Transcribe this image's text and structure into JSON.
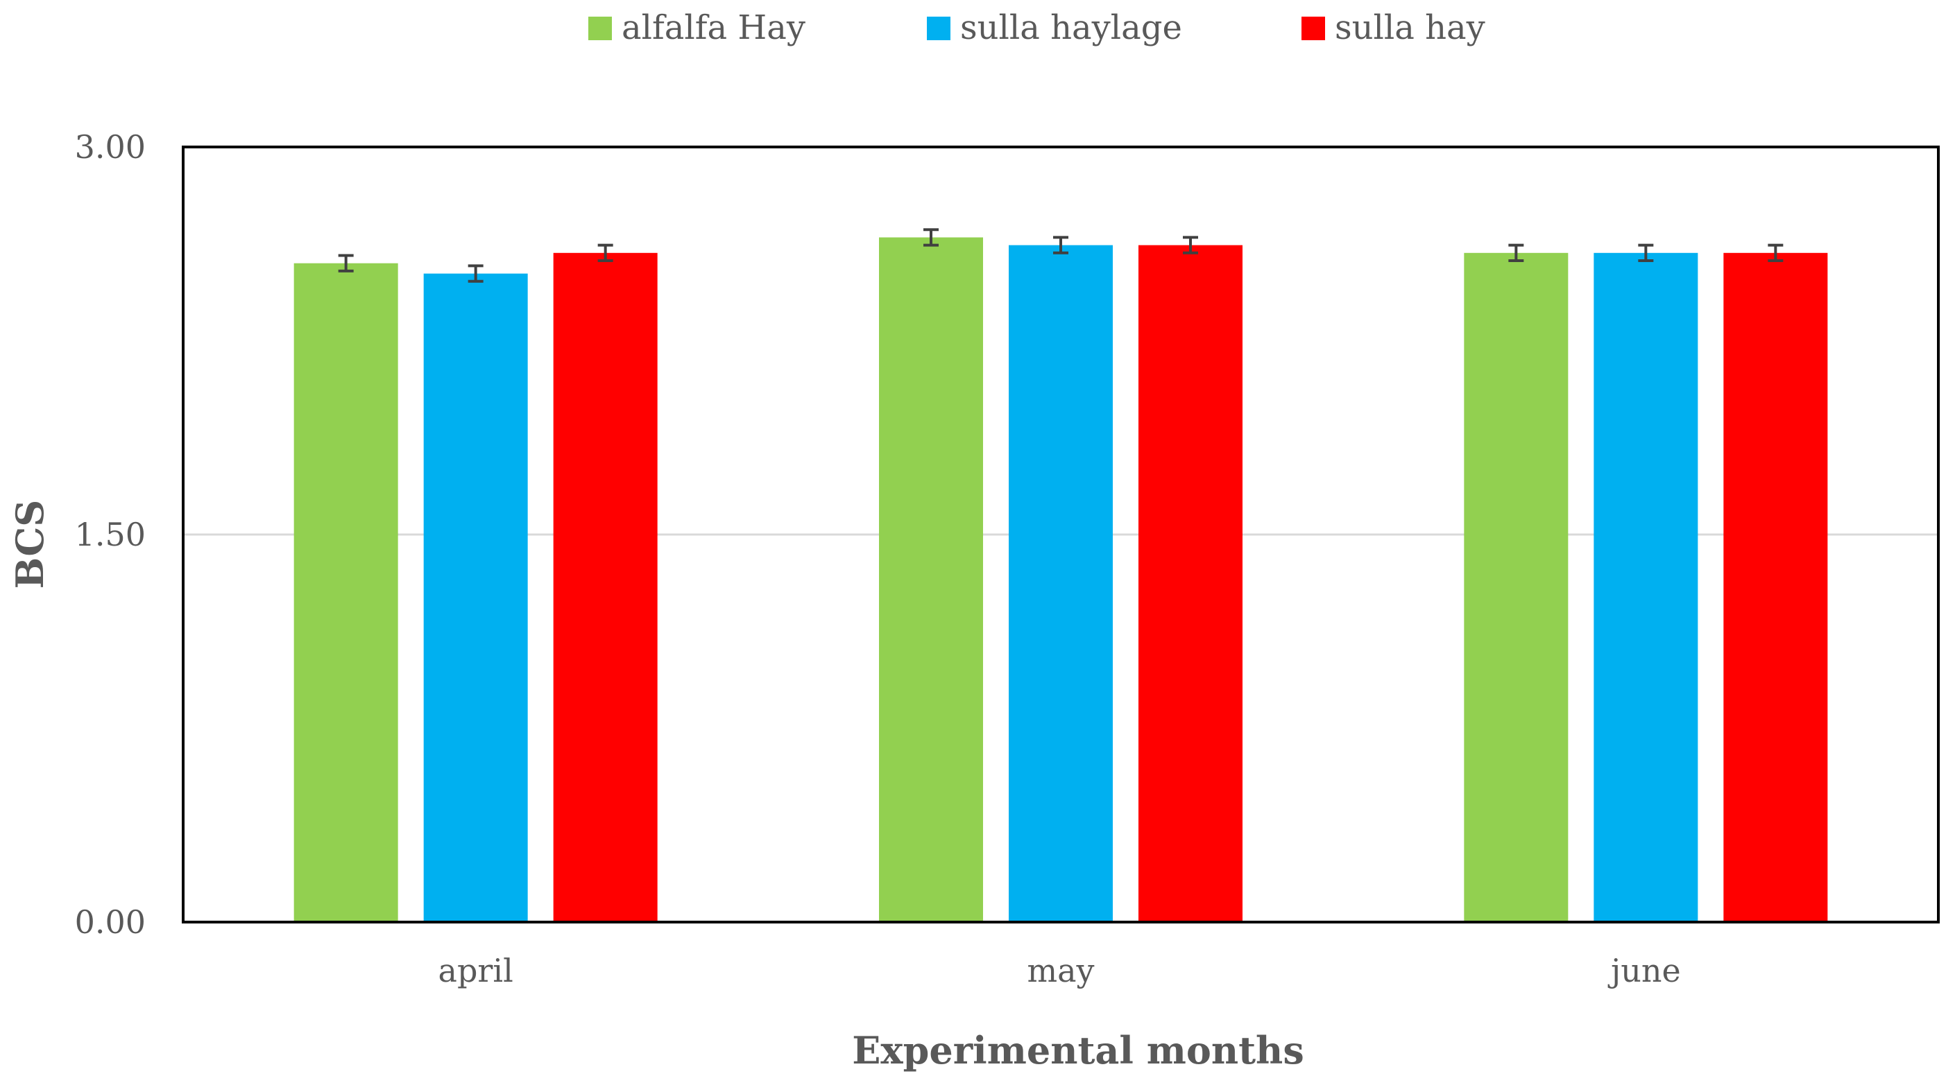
{
  "chart_data": {
    "type": "bar",
    "categories": [
      "april",
      "may",
      "june"
    ],
    "series": [
      {
        "name": "alfalfa Hay",
        "color": "#92D050",
        "values": [
          2.55,
          2.65,
          2.59
        ],
        "errors": [
          0.03,
          0.03,
          0.03
        ]
      },
      {
        "name": "sulla haylage",
        "color": "#00B0F0",
        "values": [
          2.51,
          2.62,
          2.59
        ],
        "errors": [
          0.03,
          0.03,
          0.03
        ]
      },
      {
        "name": "sulla hay",
        "color": "#FF0000",
        "values": [
          2.59,
          2.62,
          2.59
        ],
        "errors": [
          0.03,
          0.03,
          0.03
        ]
      }
    ],
    "y_ticks": [
      "0.00",
      "1.50",
      "3.00"
    ],
    "ylim": [
      0,
      3.0
    ],
    "xlabel": "Experimental months",
    "ylabel": "BCS",
    "legend_position": "top-center",
    "grid": true
  }
}
